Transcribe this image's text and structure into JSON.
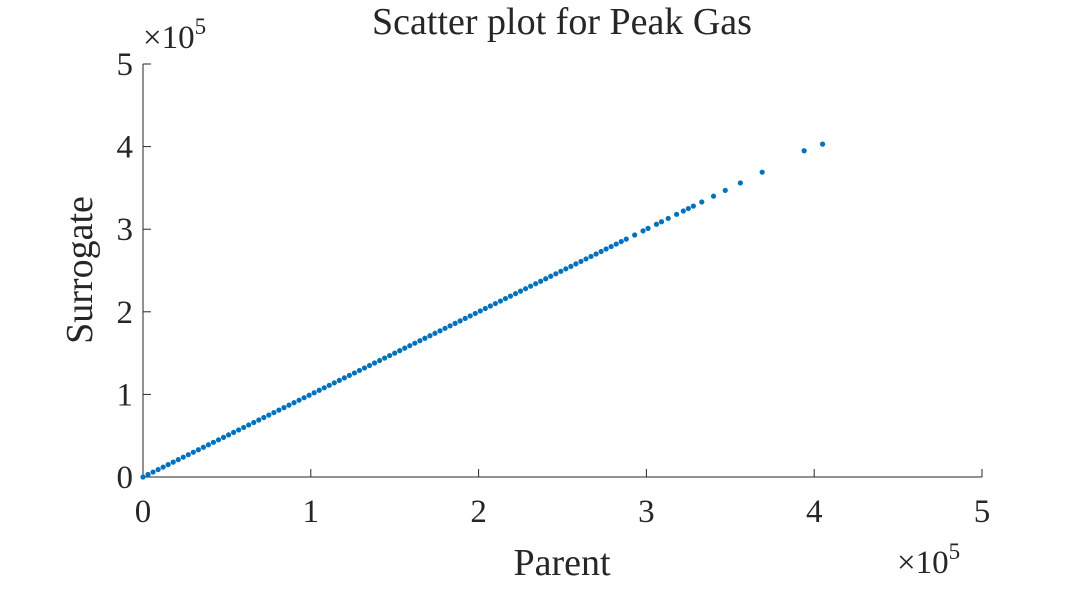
{
  "chart_data": {
    "type": "scatter",
    "title": "Scatter plot for Peak Gas",
    "x_label": "Parent",
    "y_label": "Surrogate",
    "x_multiplier": {
      "base": "×10",
      "power": "5"
    },
    "y_multiplier": {
      "base": "×10",
      "power": "5"
    },
    "color": "#0072bd",
    "xlim": [
      0,
      500000
    ],
    "ylim": [
      0,
      500000
    ],
    "xticks": [
      {
        "value": 0,
        "label": "0"
      },
      {
        "value": 100000,
        "label": "1"
      },
      {
        "value": 200000,
        "label": "2"
      },
      {
        "value": 300000,
        "label": "3"
      },
      {
        "value": 400000,
        "label": "4"
      },
      {
        "value": 500000,
        "label": "5"
      }
    ],
    "yticks": [
      {
        "value": 0,
        "label": "0"
      },
      {
        "value": 100000,
        "label": "1"
      },
      {
        "value": 200000,
        "label": "2"
      },
      {
        "value": 300000,
        "label": "3"
      },
      {
        "value": 400000,
        "label": "4"
      },
      {
        "value": 500000,
        "label": "5"
      }
    ],
    "series": [
      {
        "name": "Peak Gas",
        "color": "#0072bd",
        "x": [
          0,
          3000,
          6000,
          9000,
          12000,
          15000,
          18000,
          21000,
          24000,
          27000,
          30000,
          33000,
          36000,
          39000,
          42000,
          45000,
          48000,
          51000,
          54000,
          57000,
          60000,
          63000,
          66000,
          69000,
          72000,
          75000,
          78000,
          81000,
          84000,
          87000,
          90000,
          93000,
          96000,
          99000,
          102000,
          105000,
          108000,
          111000,
          114000,
          117000,
          120000,
          123000,
          126000,
          129000,
          132000,
          135000,
          138000,
          141000,
          144000,
          147000,
          150000,
          153000,
          156000,
          159000,
          162000,
          165000,
          168000,
          171000,
          174000,
          177000,
          180000,
          183000,
          186000,
          189000,
          192000,
          195000,
          198000,
          201000,
          204000,
          207000,
          210000,
          213000,
          216000,
          219000,
          222000,
          225000,
          228000,
          231000,
          234000,
          237000,
          240000,
          243000,
          246000,
          249000,
          252000,
          255000,
          258000,
          261000,
          264000,
          267000,
          270000,
          273000,
          276000,
          279000,
          282000,
          285000,
          288000,
          293000,
          298000,
          301000,
          306000,
          309000,
          313000,
          318000,
          322000,
          325000,
          328000,
          333000,
          340000,
          347000,
          356000,
          369000,
          394000,
          405000
        ],
        "values": [
          0,
          3000,
          6000,
          9000,
          12000,
          15000,
          18000,
          21000,
          24000,
          27000,
          30000,
          33000,
          36000,
          39000,
          42000,
          45000,
          48000,
          51000,
          54000,
          57000,
          60000,
          63000,
          66000,
          69000,
          72000,
          75000,
          78000,
          81000,
          84000,
          87000,
          90000,
          93000,
          96000,
          99000,
          102000,
          105000,
          108000,
          111000,
          114000,
          117000,
          120000,
          123000,
          126000,
          129000,
          132000,
          135000,
          138000,
          141000,
          144000,
          147000,
          150000,
          153000,
          156000,
          159000,
          162000,
          165000,
          168000,
          171000,
          174000,
          177000,
          180000,
          183000,
          186000,
          189000,
          192000,
          195000,
          198000,
          201000,
          204000,
          207000,
          210000,
          213000,
          216000,
          219000,
          222000,
          225000,
          228000,
          231000,
          234000,
          237000,
          240000,
          243000,
          246000,
          249000,
          252000,
          255000,
          258000,
          261000,
          264000,
          267000,
          270000,
          273000,
          276000,
          279000,
          282000,
          285000,
          288000,
          293000,
          298000,
          301000,
          306000,
          309000,
          313000,
          318000,
          322000,
          325000,
          328000,
          333000,
          340000,
          347000,
          356000,
          369000,
          395000,
          403000
        ]
      }
    ]
  }
}
